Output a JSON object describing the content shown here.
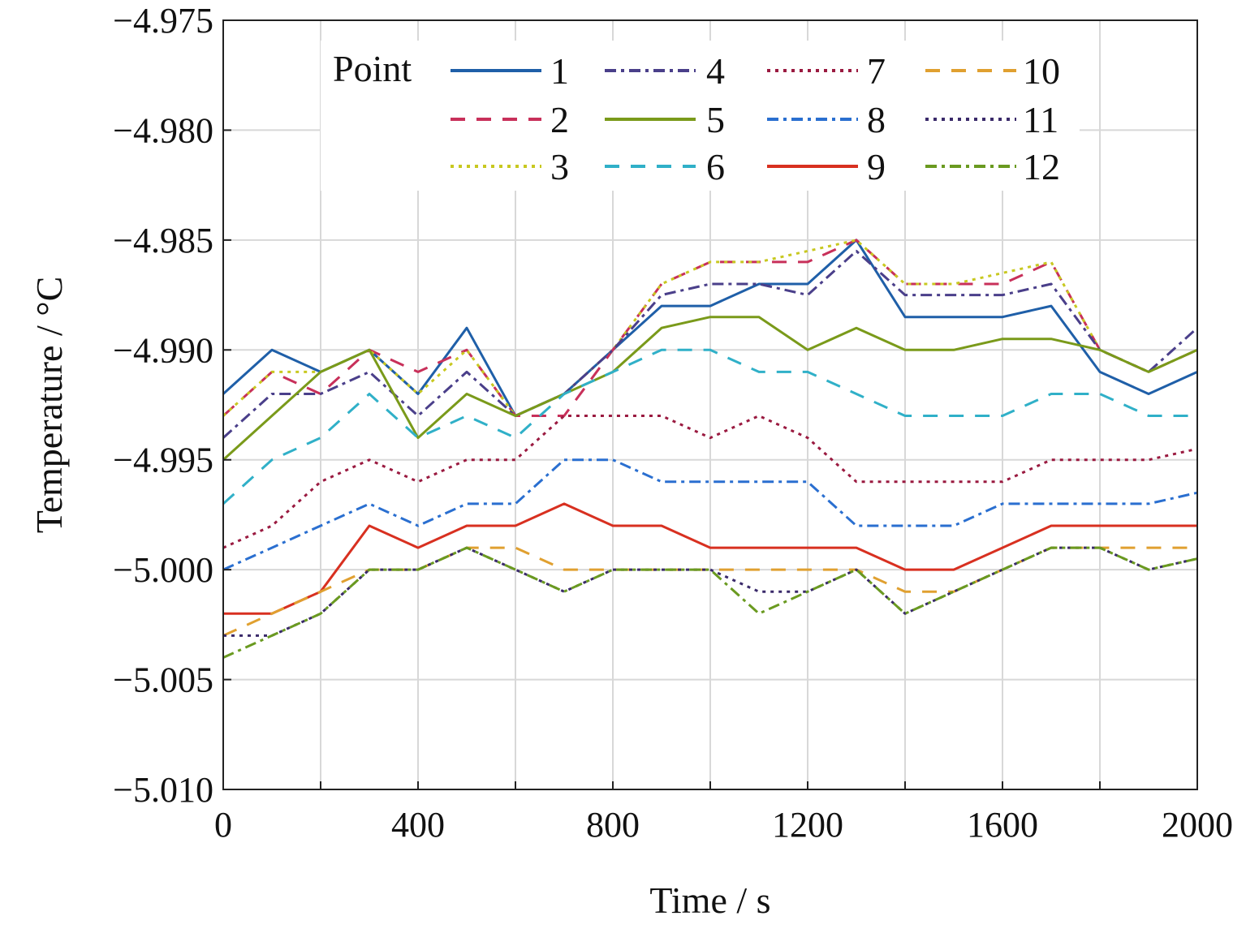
{
  "chart_data": {
    "type": "line",
    "title": "",
    "xlabel": "Time / s",
    "ylabel": "Temperature / °C",
    "xlim": [
      0,
      2000
    ],
    "ylim": [
      -5.01,
      -4.975
    ],
    "xticks": [
      0,
      400,
      800,
      1200,
      1600,
      2000
    ],
    "xtick_labels": [
      "0",
      "400",
      "800",
      "1200",
      "1600",
      "2000"
    ],
    "yticks": [
      -5.01,
      -5.005,
      -5.0,
      -4.995,
      -4.99,
      -4.985,
      -4.98,
      -4.975
    ],
    "ytick_labels": [
      "−5.010",
      "−5.005",
      "−5.000",
      "−4.995",
      "−4.990",
      "−4.985",
      "−4.980",
      "−4.975"
    ],
    "grid": true,
    "legend": {
      "title": "Point",
      "placement": "top",
      "columns": 4
    },
    "x": [
      0,
      100,
      200,
      300,
      400,
      500,
      600,
      700,
      800,
      900,
      1000,
      1100,
      1200,
      1300,
      1400,
      1500,
      1600,
      1700,
      1800,
      1900,
      2000
    ],
    "series": [
      {
        "name": "1",
        "color": "#1f5fa8",
        "dash": "solid",
        "values": [
          -4.992,
          -4.99,
          -4.991,
          -4.99,
          -4.992,
          -4.989,
          -4.993,
          -4.992,
          -4.99,
          -4.988,
          -4.988,
          -4.987,
          -4.987,
          -4.985,
          -4.9885,
          -4.9885,
          -4.9885,
          -4.988,
          -4.991,
          -4.992,
          -4.991
        ]
      },
      {
        "name": "2",
        "color": "#c8305a",
        "dash": "dashed",
        "values": [
          -4.993,
          -4.991,
          -4.992,
          -4.99,
          -4.991,
          -4.99,
          -4.993,
          -4.993,
          -4.99,
          -4.987,
          -4.986,
          -4.986,
          -4.986,
          -4.985,
          -4.987,
          -4.987,
          -4.987,
          -4.986,
          -4.99,
          -4.991,
          -4.99
        ]
      },
      {
        "name": "3",
        "color": "#c8c820",
        "dash": "dotted",
        "values": [
          -4.993,
          -4.991,
          -4.991,
          -4.99,
          -4.992,
          -4.99,
          -4.993,
          -4.992,
          -4.99,
          -4.987,
          -4.986,
          -4.986,
          -4.9855,
          -4.985,
          -4.987,
          -4.987,
          -4.9865,
          -4.986,
          -4.99,
          -4.991,
          -4.99
        ]
      },
      {
        "name": "4",
        "color": "#4a3f8a",
        "dash": "dashdot",
        "values": [
          -4.994,
          -4.992,
          -4.992,
          -4.991,
          -4.993,
          -4.991,
          -4.993,
          -4.992,
          -4.99,
          -4.9875,
          -4.987,
          -4.987,
          -4.9875,
          -4.9855,
          -4.9875,
          -4.9875,
          -4.9875,
          -4.987,
          -4.99,
          -4.991,
          -4.989
        ]
      },
      {
        "name": "5",
        "color": "#7a9a1a",
        "dash": "solid",
        "values": [
          -4.995,
          -4.993,
          -4.991,
          -4.99,
          -4.994,
          -4.992,
          -4.993,
          -4.992,
          -4.991,
          -4.989,
          -4.9885,
          -4.9885,
          -4.99,
          -4.989,
          -4.99,
          -4.99,
          -4.9895,
          -4.9895,
          -4.99,
          -4.991,
          -4.99
        ]
      },
      {
        "name": "6",
        "color": "#30b0c8",
        "dash": "dashed",
        "values": [
          -4.997,
          -4.995,
          -4.994,
          -4.992,
          -4.994,
          -4.993,
          -4.994,
          -4.992,
          -4.991,
          -4.99,
          -4.99,
          -4.991,
          -4.991,
          -4.992,
          -4.993,
          -4.993,
          -4.993,
          -4.992,
          -4.992,
          -4.993,
          -4.993
        ]
      },
      {
        "name": "7",
        "color": "#9a1a40",
        "dash": "dotted",
        "values": [
          -4.999,
          -4.998,
          -4.996,
          -4.995,
          -4.996,
          -4.995,
          -4.995,
          -4.993,
          -4.993,
          -4.993,
          -4.994,
          -4.993,
          -4.994,
          -4.996,
          -4.996,
          -4.996,
          -4.996,
          -4.995,
          -4.995,
          -4.995,
          -4.9945
        ]
      },
      {
        "name": "8",
        "color": "#2a6fd0",
        "dash": "dashdot",
        "values": [
          -5.0,
          -4.999,
          -4.998,
          -4.997,
          -4.998,
          -4.997,
          -4.997,
          -4.995,
          -4.995,
          -4.996,
          -4.996,
          -4.996,
          -4.996,
          -4.998,
          -4.998,
          -4.998,
          -4.997,
          -4.997,
          -4.997,
          -4.997,
          -4.9965
        ]
      },
      {
        "name": "9",
        "color": "#d83020",
        "dash": "solid",
        "values": [
          -5.002,
          -5.002,
          -5.001,
          -4.998,
          -4.999,
          -4.998,
          -4.998,
          -4.997,
          -4.998,
          -4.998,
          -4.999,
          -4.999,
          -4.999,
          -4.999,
          -5.0,
          -5.0,
          -4.999,
          -4.998,
          -4.998,
          -4.998,
          -4.998
        ]
      },
      {
        "name": "10",
        "color": "#e0a030",
        "dash": "dashed",
        "values": [
          -5.003,
          -5.002,
          -5.001,
          -5.0,
          -5.0,
          -4.999,
          -4.999,
          -5.0,
          -5.0,
          -5.0,
          -5.0,
          -5.0,
          -5.0,
          -5.0,
          -5.001,
          -5.001,
          -5.0,
          -4.999,
          -4.999,
          -4.999,
          -4.999
        ]
      },
      {
        "name": "11",
        "color": "#3a2a6a",
        "dash": "dotted",
        "values": [
          -5.003,
          -5.003,
          -5.002,
          -5.0,
          -5.0,
          -4.999,
          -5.0,
          -5.001,
          -5.0,
          -5.0,
          -5.0,
          -5.001,
          -5.001,
          -5.0,
          -5.002,
          -5.001,
          -5.0,
          -4.999,
          -4.999,
          -5.0,
          -4.9995
        ]
      },
      {
        "name": "12",
        "color": "#6a9a20",
        "dash": "dashdot",
        "values": [
          -5.004,
          -5.003,
          -5.002,
          -5.0,
          -5.0,
          -4.999,
          -5.0,
          -5.001,
          -5.0,
          -5.0,
          -5.0,
          -5.002,
          -5.001,
          -5.0,
          -5.002,
          -5.001,
          -5.0,
          -4.999,
          -4.999,
          -5.0,
          -4.9995
        ]
      }
    ]
  }
}
